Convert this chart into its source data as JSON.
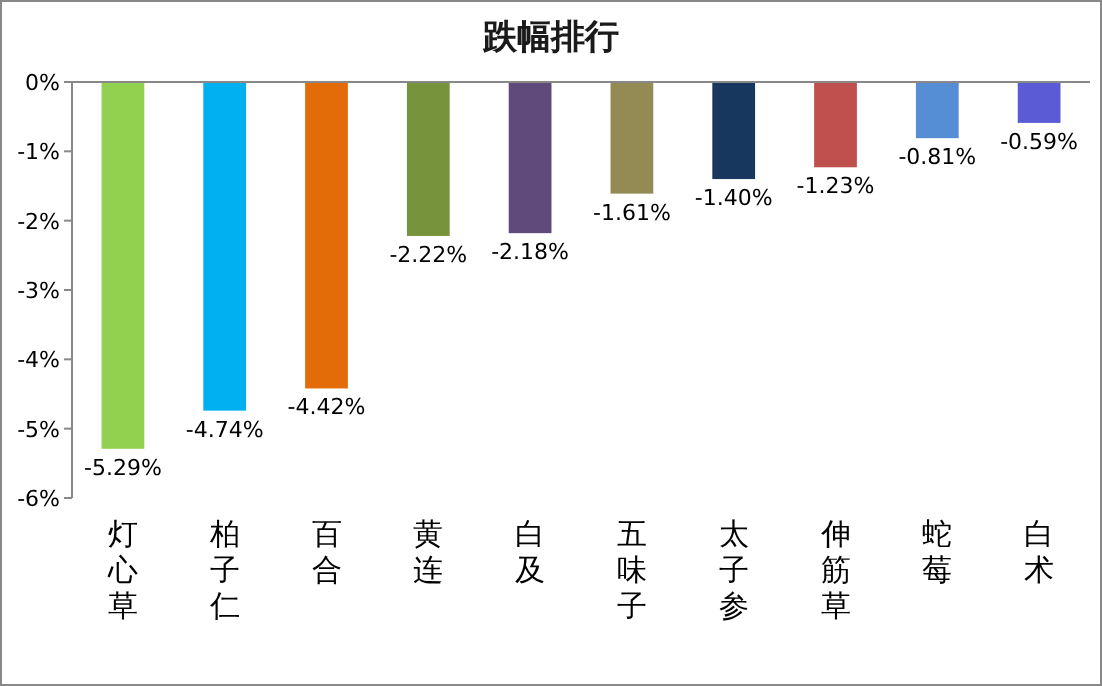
{
  "chart_data": {
    "type": "bar",
    "title": "跌幅排行",
    "categories": [
      "灯心草",
      "柏子仁",
      "百合",
      "黄连",
      "白及",
      "五味子",
      "太子参",
      "伸筋草",
      "蛇莓",
      "白术"
    ],
    "values": [
      -5.29,
      -4.74,
      -4.42,
      -2.22,
      -2.18,
      -1.61,
      -1.4,
      -1.23,
      -0.81,
      -0.59
    ],
    "colors": [
      "#92d050",
      "#00b0f0",
      "#e36c09",
      "#77933c",
      "#604a7b",
      "#948a54",
      "#17375e",
      "#c0504d",
      "#558ed5",
      "#5b5bd6"
    ],
    "value_labels": [
      "-5.29%",
      "-4.74%",
      "-4.42%",
      "-2.22%",
      "-2.18%",
      "-1.61%",
      "-1.40%",
      "-1.23%",
      "-0.81%",
      "-0.59%"
    ],
    "ylim": [
      -6,
      0
    ],
    "yticks": [
      {
        "value": 0,
        "label": "0%"
      },
      {
        "value": -1,
        "label": "-1%"
      },
      {
        "value": -2,
        "label": "-2%"
      },
      {
        "value": -3,
        "label": "-3%"
      },
      {
        "value": -4,
        "label": "-4%"
      },
      {
        "value": -5,
        "label": "-5%"
      },
      {
        "value": -6,
        "label": "-6%"
      }
    ],
    "grid": false
  }
}
